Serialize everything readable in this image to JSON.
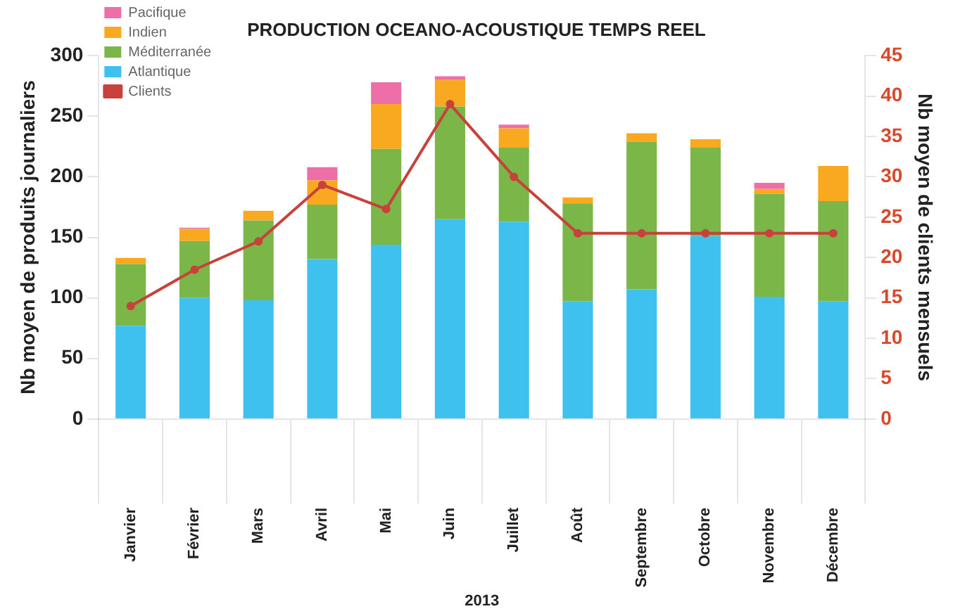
{
  "chart_data": {
    "type": "bar",
    "title": "PRODUCTION OCEANO-ACOUSTIQUE TEMPS REEL",
    "xlabel": "2013",
    "ylabel": "Nb moyen de produits journaliers",
    "y2label": "Nb moyen de clients mensuels",
    "categories": [
      "Janvier",
      "Février",
      "Mars",
      "Avril",
      "Mai",
      "Juin",
      "Juillet",
      "Août",
      "Septembre",
      "Octobre",
      "Novembre",
      "Décembre"
    ],
    "stacked": true,
    "series": [
      {
        "name": "Atlantique",
        "color": "#3fc1f0",
        "values": [
          77,
          100,
          98,
          132,
          144,
          165,
          163,
          97,
          107,
          151,
          101,
          97
        ]
      },
      {
        "name": "Méditerranée",
        "color": "#7ab648",
        "values": [
          51,
          47,
          66,
          45,
          79,
          93,
          61,
          81,
          122,
          73,
          85,
          83
        ]
      },
      {
        "name": "Indien",
        "color": "#f8a91f",
        "values": [
          5,
          10,
          8,
          20,
          37,
          22,
          16,
          5,
          7,
          7,
          4,
          29
        ]
      },
      {
        "name": "Pacifique",
        "color": "#ee6fa8",
        "values": [
          0,
          1,
          0,
          11,
          18,
          3,
          3,
          0,
          0,
          0,
          5,
          0
        ]
      },
      {
        "name": "Clients",
        "type": "line",
        "axis": "y2",
        "color": "#c8423b",
        "values": [
          14,
          18.5,
          22,
          29,
          26,
          39,
          30,
          23,
          23,
          23,
          23,
          23
        ]
      }
    ],
    "ylim": [
      0,
      300
    ],
    "yticks": [
      0,
      50,
      100,
      150,
      200,
      250,
      300
    ],
    "y2lim": [
      0,
      45
    ],
    "y2ticks": [
      0,
      5,
      10,
      15,
      20,
      25,
      30,
      35,
      40,
      45
    ],
    "grid": false,
    "legend": "top left",
    "marker": "circle",
    "line_style": "solid"
  }
}
